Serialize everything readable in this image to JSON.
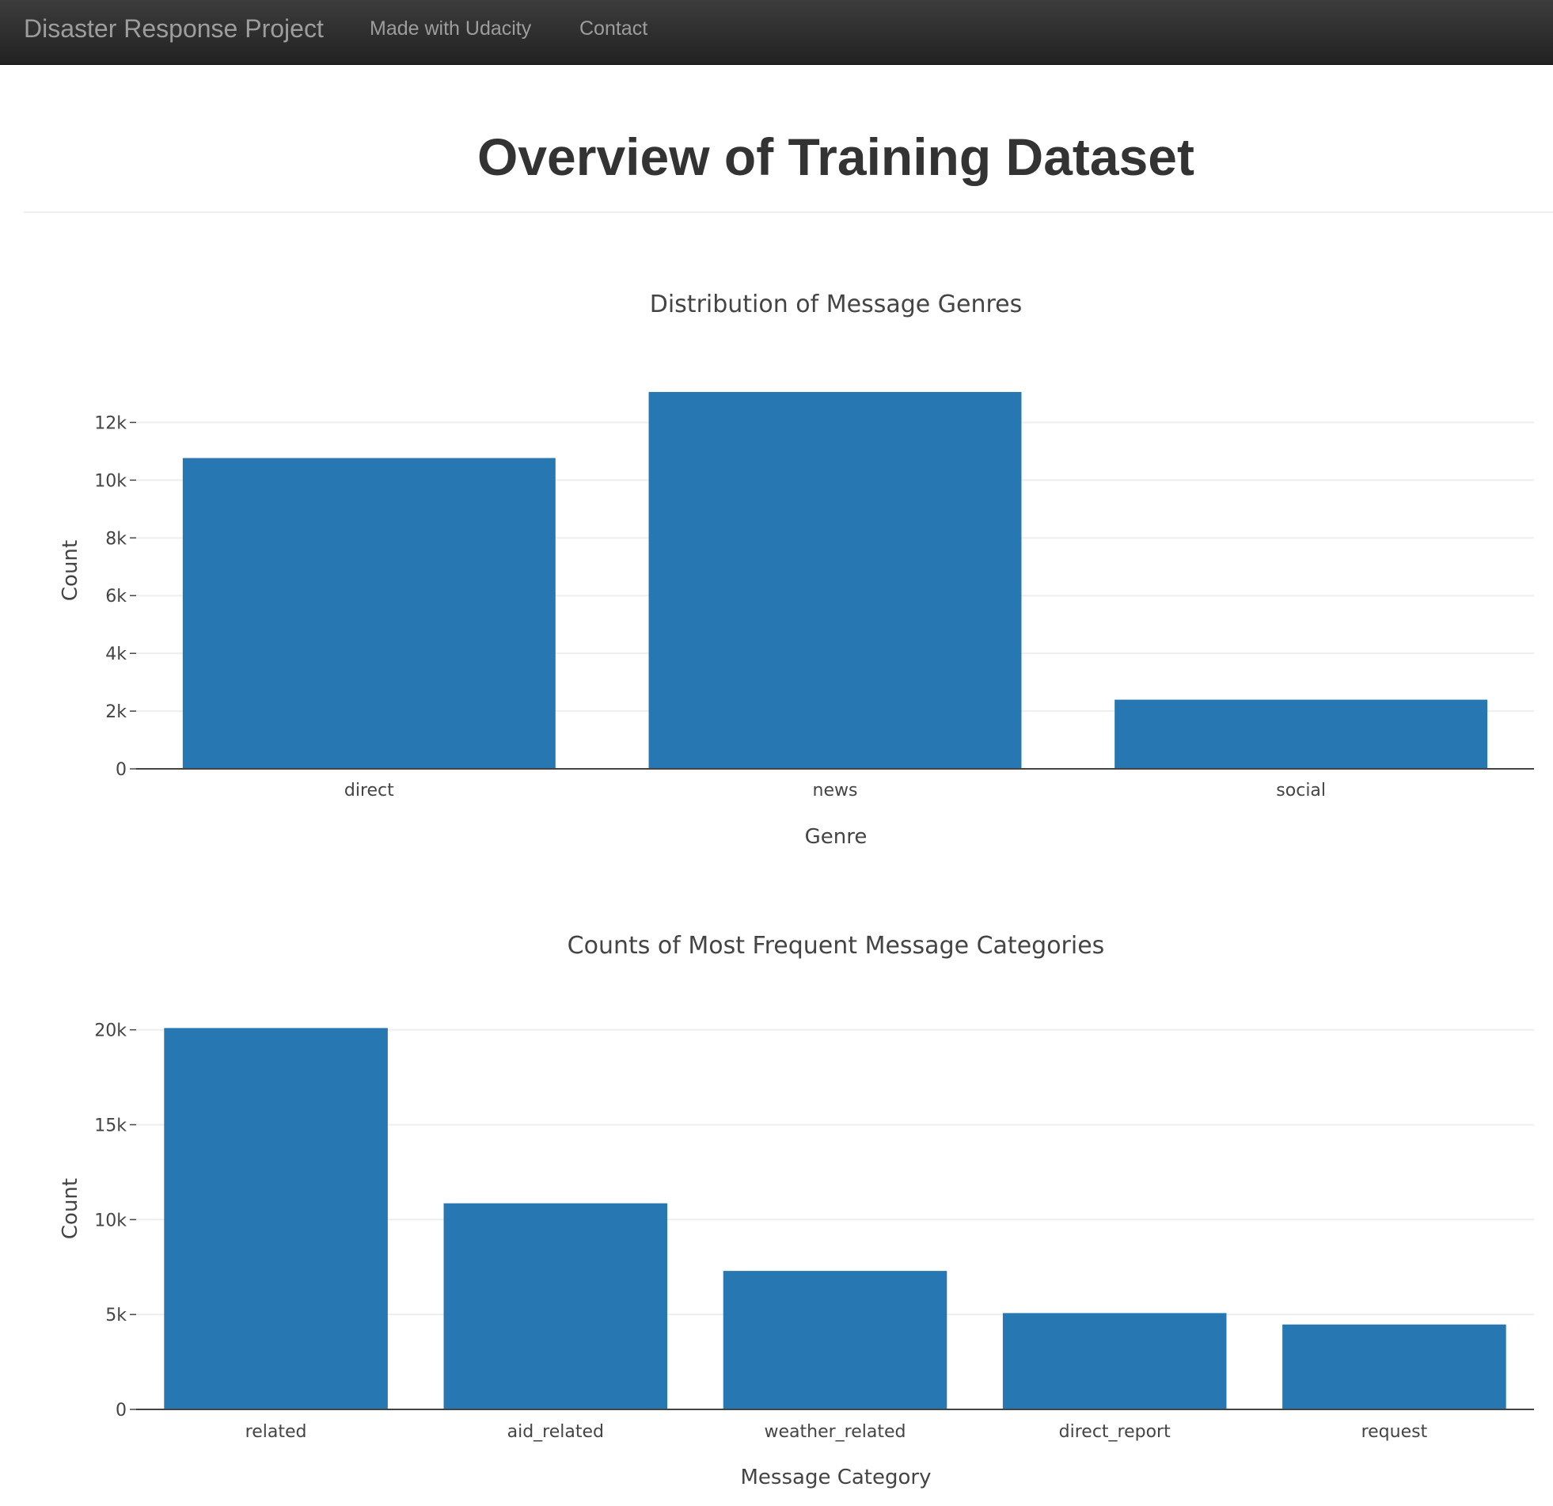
{
  "navbar": {
    "brand": "Disaster Response Project",
    "links": [
      "Made with Udacity",
      "Contact"
    ]
  },
  "page": {
    "title": "Overview of Training Dataset"
  },
  "colors": {
    "bar": "#2778b2",
    "navbar": "#222222",
    "grid": "#eeeeee"
  },
  "chart_data": [
    {
      "type": "bar",
      "title": "Distribution of Message Genres",
      "xlabel": "Genre",
      "ylabel": "Count",
      "categories": [
        "direct",
        "news",
        "social"
      ],
      "values": [
        10766,
        13054,
        2396
      ],
      "ylim": [
        0,
        13741
      ],
      "yticks": [
        0,
        2000,
        4000,
        6000,
        8000,
        10000,
        12000
      ],
      "yticklabels": [
        "0",
        "2k",
        "4k",
        "6k",
        "8k",
        "10k",
        "12k"
      ],
      "grid": true
    },
    {
      "type": "bar",
      "title": "Counts of Most Frequent Message Categories",
      "xlabel": "Message Category",
      "ylabel": "Count",
      "categories": [
        "related",
        "aid_related",
        "weather_related",
        "direct_report",
        "request"
      ],
      "values": [
        20094,
        10860,
        7297,
        5075,
        4474
      ],
      "ylim": [
        0,
        21152
      ],
      "yticks": [
        0,
        5000,
        10000,
        15000,
        20000
      ],
      "yticklabels": [
        "0",
        "5k",
        "10k",
        "15k",
        "20k"
      ],
      "grid": true
    }
  ]
}
